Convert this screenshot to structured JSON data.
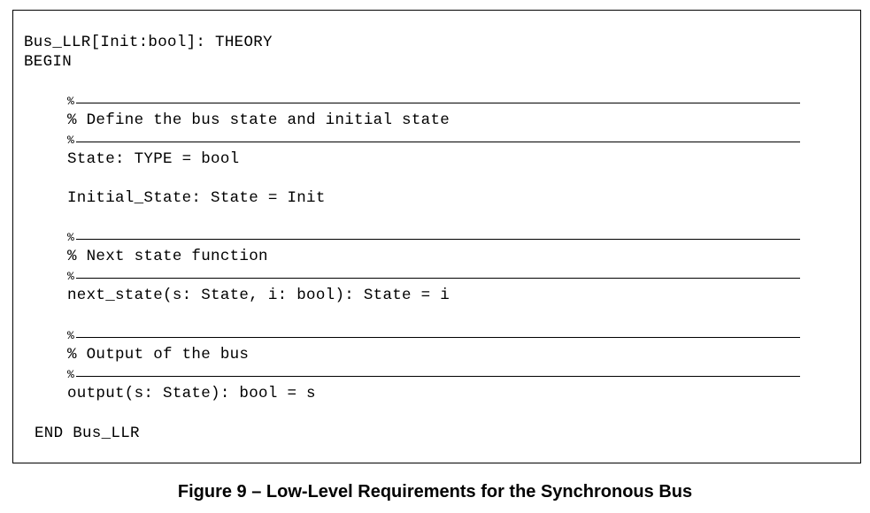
{
  "code": {
    "header_line": "Bus_LLR[Init:bool]: THEORY",
    "begin_line": "BEGIN",
    "sections": [
      {
        "rule_char": "%",
        "comment": "% Define the bus state and initial state",
        "declarations": [
          "State: TYPE = bool",
          "Initial_State: State = Init"
        ]
      },
      {
        "rule_char": "%",
        "comment": "% Next state function",
        "declarations": [
          "next_state(s: State, i: bool): State = i"
        ]
      },
      {
        "rule_char": "%",
        "comment": "% Output of the bus",
        "declarations": [
          "output(s: State): bool = s"
        ]
      }
    ],
    "end_line": "END Bus_LLR"
  },
  "caption": "Figure 9 – Low-Level Requirements for the Synchronous Bus"
}
